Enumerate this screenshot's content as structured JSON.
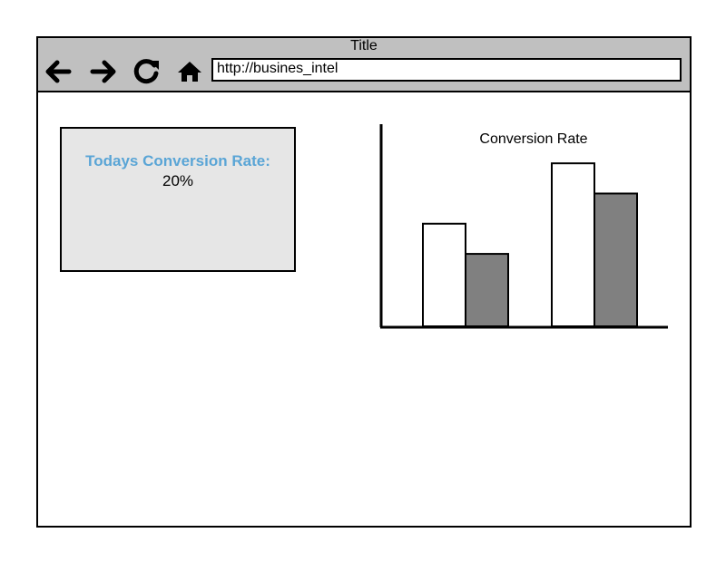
{
  "browser": {
    "title": "Title",
    "url": "http://busines_intel",
    "buttons": {
      "back": "back-arrow-icon",
      "forward": "forward-arrow-icon",
      "reload": "reload-icon",
      "home": "home-icon"
    }
  },
  "kpi": {
    "label": "Todays Conversion Rate:",
    "value": "20%",
    "label_color": "#5aa5d6",
    "background_color": "#e6e6e6"
  },
  "chart_data": {
    "type": "bar",
    "title": "Conversion Rate",
    "categories": [
      "",
      ""
    ],
    "series": [
      {
        "values": [
          51,
          81
        ],
        "color": "#ffffff"
      },
      {
        "values": [
          36,
          66
        ],
        "color": "#808080"
      }
    ],
    "ylim": [
      0,
      100
    ],
    "grid": false
  }
}
